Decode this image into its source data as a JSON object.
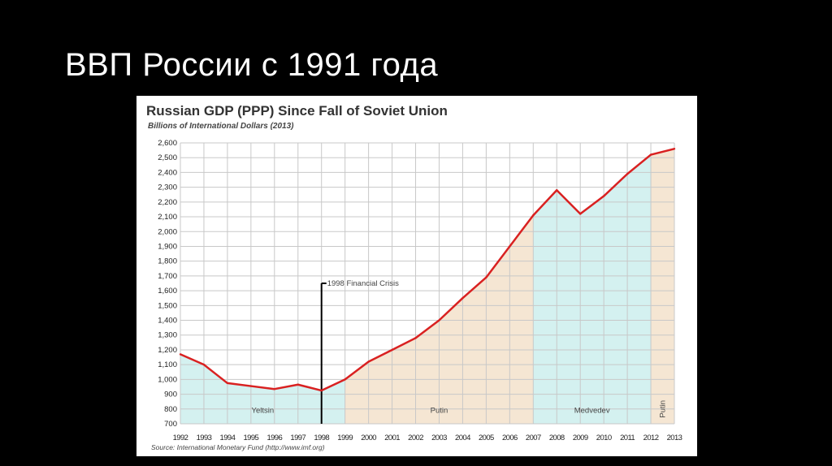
{
  "slide": {
    "title": "ВВП России с 1991 года"
  },
  "colors": {
    "yeltsin_fill": "#d4f1f0",
    "putin_fill": "#f5e6d3",
    "medvedev_fill": "#d4f1f0",
    "line": "#d92121",
    "grid": "#c8c8c8",
    "crisis_line": "#000000"
  },
  "chart_data": {
    "type": "line",
    "title": "Russian GDP (PPP) Since Fall of Soviet Union",
    "subtitle": "Billions of International Dollars (2013)",
    "xlabel": "",
    "ylabel": "",
    "ylim": [
      700,
      2600
    ],
    "ytick_step": 100,
    "y_tick_labels": [
      "700",
      "800",
      "900",
      "1,000",
      "1,100",
      "1,200",
      "1,300",
      "1,400",
      "1,500",
      "1,600",
      "1,700",
      "1,800",
      "1,900",
      "2,000",
      "2,100",
      "2,200",
      "2,300",
      "2,400",
      "2,500",
      "2,600"
    ],
    "x_tick_labels": [
      "1992",
      "1993",
      "1994",
      "1995",
      "1996",
      "1997",
      "1998",
      "1999",
      "2000",
      "2001",
      "2002",
      "2003",
      "2004",
      "2005",
      "2006",
      "2007",
      "2008",
      "2009",
      "2010",
      "2011",
      "2012",
      "2013"
    ],
    "series": [
      {
        "name": "GDP (PPP)",
        "x": [
          1992,
          1993,
          1994,
          1995,
          1996,
          1997,
          1998,
          1999,
          2000,
          2001,
          2002,
          2003,
          2004,
          2005,
          2006,
          2007,
          2008,
          2009,
          2010,
          2011,
          2012,
          2013
        ],
        "values": [
          1170,
          1100,
          975,
          955,
          935,
          965,
          925,
          1000,
          1120,
          1200,
          1280,
          1400,
          1550,
          1690,
          1900,
          2110,
          2280,
          2120,
          2240,
          2390,
          2520,
          2560
        ]
      }
    ],
    "eras": [
      {
        "name": "Yeltsin",
        "start": 1992,
        "end": 1999,
        "color_key": "yeltsin_fill"
      },
      {
        "name": "Putin",
        "start": 1999,
        "end": 2007,
        "color_key": "putin_fill"
      },
      {
        "name": "Medvedev",
        "start": 2007,
        "end": 2012,
        "color_key": "medvedev_fill"
      },
      {
        "name": "Putin",
        "start": 2012,
        "end": 2013,
        "color_key": "putin_fill",
        "vertical_label": true
      }
    ],
    "annotations": [
      {
        "text": "1998 Financial Crisis",
        "x": 1998,
        "y_top": 1650
      }
    ],
    "source": "Source: International Monetary Fund (http://www.imf.org)"
  }
}
